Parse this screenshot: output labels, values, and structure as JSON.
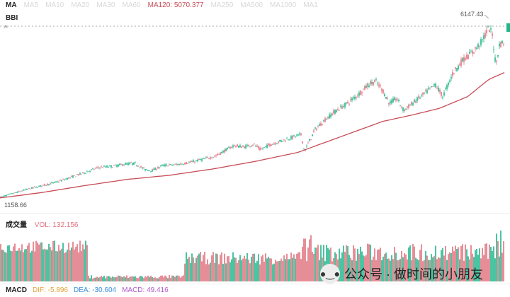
{
  "legend": {
    "ma_title": "MA",
    "items": [
      {
        "label": "MA5",
        "color": "#d8d8d8"
      },
      {
        "label": "MA10",
        "color": "#d8d8d8"
      },
      {
        "label": "MA20",
        "color": "#d8d8d8"
      },
      {
        "label": "MA30",
        "color": "#d8d8d8"
      },
      {
        "label": "MA60",
        "color": "#d8d8d8"
      },
      {
        "label": "MA120: 5070.377",
        "color": "#c84b57"
      },
      {
        "label": "MA250",
        "color": "#d8d8d8"
      },
      {
        "label": "MA500",
        "color": "#d8d8d8"
      },
      {
        "label": "MA1000",
        "color": "#d8d8d8"
      },
      {
        "label": "MA1",
        "color": "#d8d8d8"
      }
    ],
    "bbi_label": "BBI"
  },
  "price": {
    "high_label": "6147.43",
    "low_label": "1158.66"
  },
  "volume": {
    "title": "成交量",
    "vol_text": "VOL: 132.156",
    "vol_color": "#e0727f"
  },
  "macd": {
    "title": "MACD",
    "dif": "DIF: -5.896",
    "dea": "DEA: -30.604",
    "macd": "MACD: 49.416",
    "dif_color": "#e1a33a",
    "dea_color": "#3a8fd8",
    "macd_color": "#b05acb"
  },
  "watermark": {
    "text": "公众号 · 做时间的小朋友",
    "icon": "wechat-icon"
  },
  "colors": {
    "up": "#e0727f",
    "down": "#1fb68a",
    "ma": "#c84b57"
  },
  "chart_data": {
    "type": "candlestick",
    "series_trend": [
      [
        0,
        1180
      ],
      [
        20,
        1300
      ],
      [
        40,
        1420
      ],
      [
        60,
        1520
      ],
      [
        80,
        1620
      ],
      [
        100,
        1760
      ],
      [
        120,
        1900
      ],
      [
        140,
        2050
      ],
      [
        160,
        2080
      ],
      [
        175,
        2140
      ],
      [
        190,
        2160
      ],
      [
        205,
        1980
      ],
      [
        215,
        1960
      ],
      [
        230,
        2100
      ],
      [
        250,
        2130
      ],
      [
        270,
        2200
      ],
      [
        290,
        2300
      ],
      [
        305,
        2380
      ],
      [
        318,
        2540
      ],
      [
        330,
        2680
      ],
      [
        345,
        2640
      ],
      [
        358,
        2720
      ],
      [
        368,
        2560
      ],
      [
        380,
        2700
      ],
      [
        395,
        2800
      ],
      [
        410,
        2900
      ],
      [
        425,
        3000
      ],
      [
        430,
        2500
      ],
      [
        434,
        2700
      ],
      [
        445,
        3150
      ],
      [
        460,
        3450
      ],
      [
        475,
        3700
      ],
      [
        490,
        3900
      ],
      [
        505,
        4150
      ],
      [
        520,
        4450
      ],
      [
        530,
        4550
      ],
      [
        540,
        4300
      ],
      [
        550,
        3900
      ],
      [
        560,
        4050
      ],
      [
        570,
        3700
      ],
      [
        585,
        3950
      ],
      [
        600,
        4200
      ],
      [
        615,
        4450
      ],
      [
        625,
        4100
      ],
      [
        640,
        4800
      ],
      [
        655,
        5200
      ],
      [
        668,
        5400
      ],
      [
        680,
        5700
      ],
      [
        690,
        6100
      ],
      [
        695,
        5900
      ],
      [
        700,
        5000
      ],
      [
        705,
        5600
      ],
      [
        712,
        5700
      ]
    ],
    "ma120_trend": [
      [
        0,
        1160
      ],
      [
        60,
        1320
      ],
      [
        120,
        1520
      ],
      [
        180,
        1700
      ],
      [
        240,
        1820
      ],
      [
        300,
        2000
      ],
      [
        360,
        2220
      ],
      [
        420,
        2480
      ],
      [
        460,
        2780
      ],
      [
        500,
        3080
      ],
      [
        540,
        3380
      ],
      [
        580,
        3560
      ],
      [
        620,
        3760
      ],
      [
        660,
        4100
      ],
      [
        690,
        4600
      ],
      [
        712,
        4800
      ]
    ],
    "ylim": [
      1158.66,
      6147.43
    ],
    "annotations": [
      "6147.43",
      "1158.66"
    ]
  }
}
